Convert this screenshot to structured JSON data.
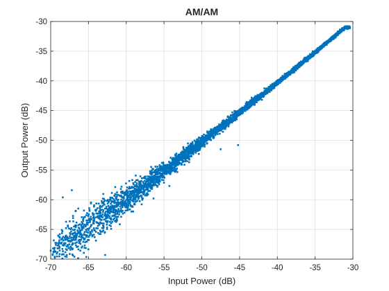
{
  "colors": {
    "marker": "#0072BD",
    "grid": "#DFDFDF",
    "axis": "#262626",
    "background": "#FFFFFF"
  },
  "chart_data": {
    "type": "scatter",
    "title": "AM/AM",
    "xlabel": "Input Power (dB)",
    "ylabel": "Output Power (dB)",
    "xlim": [
      -70,
      -30
    ],
    "ylim": [
      -70,
      -30
    ],
    "xticks": [
      -70,
      -65,
      -60,
      -55,
      -50,
      -45,
      -40,
      -35,
      -30
    ],
    "yticks": [
      -70,
      -65,
      -60,
      -55,
      -50,
      -45,
      -40,
      -35,
      -30
    ],
    "xtick_labels": [
      "-70",
      "-65",
      "-60",
      "-55",
      "-50",
      "-45",
      "-40",
      "-35",
      "-30"
    ],
    "ytick_labels": [
      "-70",
      "-65",
      "-60",
      "-55",
      "-50",
      "-45",
      "-40",
      "-35",
      "-30"
    ],
    "grid": true,
    "box": true,
    "marker": "square",
    "trend": {
      "description": "approximately linear, output ≈ input",
      "x": [
        -70,
        -65,
        -60,
        -55,
        -50,
        -45,
        -40,
        -35,
        -31
      ],
      "y": [
        -69.5,
        -64.5,
        -60,
        -55.2,
        -50.3,
        -45.3,
        -40.3,
        -35.2,
        -31
      ],
      "spread_db": [
        3.5,
        3.0,
        2.0,
        1.2,
        0.8,
        0.5,
        0.35,
        0.25,
        0.2
      ]
    },
    "outliers": [
      {
        "x": -45.2,
        "y": -50.8
      },
      {
        "x": -47.5,
        "y": -51.5
      },
      {
        "x": -62.8,
        "y": -69.3
      },
      {
        "x": -67.2,
        "y": -58.4
      },
      {
        "x": -68.4,
        "y": -59.6
      }
    ]
  }
}
